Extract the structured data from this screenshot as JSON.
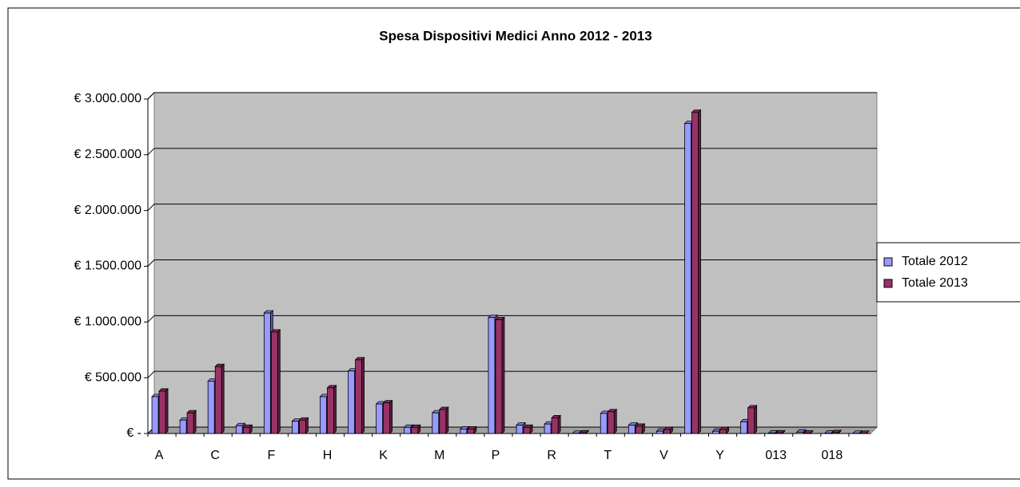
{
  "chart_data": {
    "type": "bar",
    "title": "Spesa Dispositivi Medici Anno 2012 - 2013",
    "categories": [
      "A",
      null,
      "C",
      null,
      "F",
      null,
      "H",
      null,
      "K",
      null,
      "M",
      null,
      "P",
      null,
      "R",
      null,
      "T",
      null,
      "V",
      null,
      "Y",
      null,
      "013",
      null,
      "018",
      null
    ],
    "series": [
      {
        "name": "Totale 2012",
        "color": "#9999ff",
        "values": [
          330000,
          120000,
          470000,
          70000,
          1080000,
          110000,
          330000,
          560000,
          265000,
          55000,
          185000,
          40000,
          1040000,
          75000,
          85000,
          2000,
          180000,
          75000,
          20000,
          2780000,
          20000,
          105000,
          5000,
          12000,
          3000,
          2000
        ]
      },
      {
        "name": "Totale 2013",
        "color": "#993366",
        "values": [
          380000,
          185000,
          600000,
          55000,
          910000,
          120000,
          410000,
          660000,
          275000,
          55000,
          215000,
          40000,
          1020000,
          55000,
          140000,
          5000,
          195000,
          65000,
          35000,
          2880000,
          35000,
          230000,
          5000,
          3000,
          8000,
          2000
        ]
      }
    ],
    "ylim": [
      0,
      3000000
    ],
    "yticks": [
      {
        "value": 0,
        "label": "€ -"
      },
      {
        "value": 500000,
        "label": "€ 500.000"
      },
      {
        "value": 1000000,
        "label": "€ 1.000.000"
      },
      {
        "value": 1500000,
        "label": "€ 1.500.000"
      },
      {
        "value": 2000000,
        "label": "€ 2.000.000"
      },
      {
        "value": 2500000,
        "label": "€ 2.500.000"
      },
      {
        "value": 3000000,
        "label": "€ 3.000.000"
      }
    ],
    "grid": true,
    "legend": "right"
  }
}
